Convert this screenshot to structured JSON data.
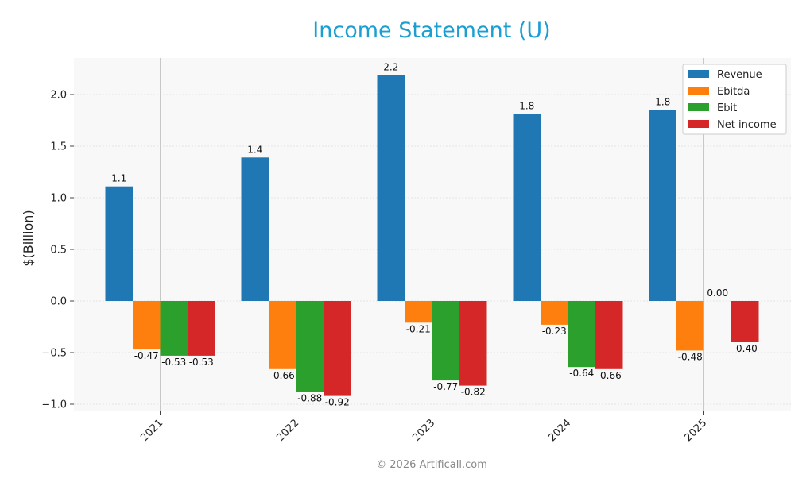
{
  "colors": {
    "title": "#1a9fd0",
    "plot_background": "#f8f8f8",
    "grid": "#dddddd",
    "footer": "#888888"
  },
  "footer": "© 2026 Artificall.com",
  "chart_data": {
    "type": "bar",
    "title": "Income Statement (U)",
    "xlabel": "",
    "ylabel": "$(Billion)",
    "categories": [
      "2021",
      "2022",
      "2023",
      "2024",
      "2025"
    ],
    "ylim": [
      -1.07,
      2.35
    ],
    "yticks": [
      "2.0",
      "1.5",
      "1.0",
      "0.5",
      "0.0",
      "−0.5",
      "−1.0"
    ],
    "ytick_values": [
      2.0,
      1.5,
      1.0,
      0.5,
      0.0,
      -0.5,
      -1.0
    ],
    "grid": true,
    "legend_position": "top-right",
    "series": [
      {
        "name": "Revenue",
        "color": "#1f77b4",
        "values": [
          1.11,
          1.39,
          2.19,
          1.81,
          1.85
        ],
        "labels": [
          "1.1",
          "1.4",
          "2.2",
          "1.8",
          "1.8"
        ]
      },
      {
        "name": "Ebitda",
        "color": "#ff7f0e",
        "values": [
          -0.47,
          -0.66,
          -0.21,
          -0.23,
          -0.48
        ],
        "labels": [
          "-0.47",
          "-0.66",
          "-0.21",
          "-0.23",
          "-0.48"
        ]
      },
      {
        "name": "Ebit",
        "color": "#2ca02c",
        "values": [
          -0.53,
          -0.88,
          -0.77,
          -0.64,
          0.0
        ],
        "labels": [
          "-0.53",
          "-0.88",
          "-0.77",
          "-0.64",
          "0.00"
        ]
      },
      {
        "name": "Net income",
        "color": "#d62728",
        "values": [
          -0.53,
          -0.92,
          -0.82,
          -0.66,
          -0.4
        ],
        "labels": [
          "-0.53",
          "-0.92",
          "-0.82",
          "-0.66",
          "-0.40"
        ]
      }
    ]
  }
}
